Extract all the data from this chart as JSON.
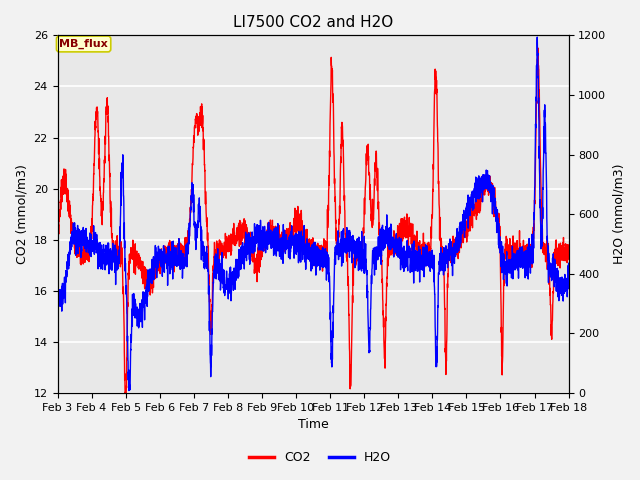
{
  "title": "LI7500 CO2 and H2O",
  "xlabel": "Time",
  "ylabel_left": "CO2 (mmol/m3)",
  "ylabel_right": "H2O (mmol/m3)",
  "xlim_days": [
    3,
    18
  ],
  "ylim_left": [
    12,
    26
  ],
  "ylim_right": [
    0,
    1200
  ],
  "yticks_left": [
    12,
    14,
    16,
    18,
    20,
    22,
    24,
    26
  ],
  "yticks_right": [
    0,
    200,
    400,
    600,
    800,
    1000,
    1200
  ],
  "xtick_labels": [
    "Feb 3",
    "Feb 4",
    "Feb 5",
    "Feb 6",
    "Feb 7",
    "Feb 8",
    "Feb 9",
    "Feb 10",
    "Feb 11",
    "Feb 12",
    "Feb 13",
    "Feb 14",
    "Feb 15",
    "Feb 16",
    "Feb 17",
    "Feb 18"
  ],
  "co2_color": "#FF0000",
  "h2o_color": "#0000FF",
  "fig_bg_color": "#F2F2F2",
  "plot_bg_color": "#E8E8E8",
  "grid_color": "#FFFFFF",
  "legend_label_co2": "CO2",
  "legend_label_h2o": "H2O",
  "annotation_text": "MB_flux",
  "annotation_bg": "#FFFFCC",
  "annotation_border": "#CCCC00",
  "title_fontsize": 11,
  "axis_fontsize": 9,
  "tick_fontsize": 8,
  "line_width": 1.0
}
